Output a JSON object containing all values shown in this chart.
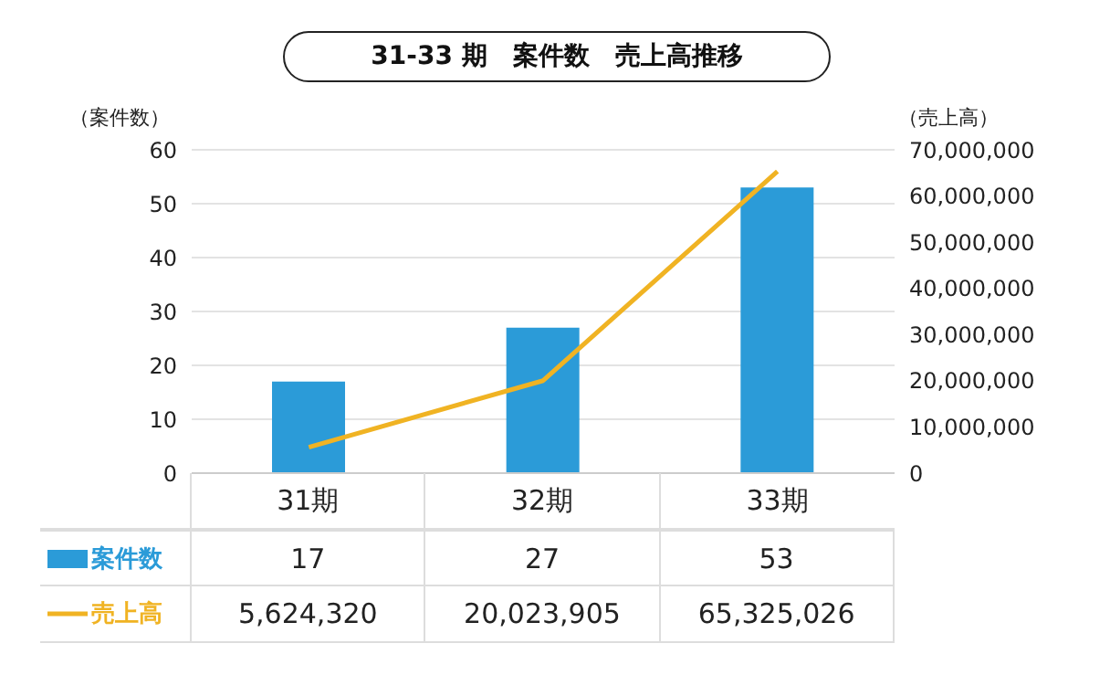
{
  "chart_data": {
    "type": "bar",
    "title": "31-33 期　案件数　売上高推移",
    "ylabel": "（案件数）",
    "y2label": "（売上高）",
    "categories": [
      "31期",
      "32期",
      "33期"
    ],
    "series": [
      {
        "name": "案件数",
        "color": "#2b9bd8",
        "values": [
          17,
          27,
          53
        ],
        "value_labels": [
          "17",
          "27",
          "53"
        ]
      },
      {
        "name": "売上高",
        "type": "line",
        "axis": "y2",
        "color": "#f0b323",
        "values": [
          5624320,
          20023905,
          65325026
        ],
        "value_labels": [
          "5,624,320",
          "20,023,905",
          "65,325,026"
        ]
      }
    ],
    "ylim": [
      0,
      60
    ],
    "yticks": [
      0,
      10,
      20,
      30,
      40,
      50,
      60
    ],
    "y2lim": [
      0,
      70000000
    ],
    "y2ticks": [
      {
        "value": 0,
        "label": "0"
      },
      {
        "value": 10000000,
        "label": "10,000,000"
      },
      {
        "value": 20000000,
        "label": "20,000,000"
      },
      {
        "value": 30000000,
        "label": "30,000,000"
      },
      {
        "value": 40000000,
        "label": "40,000,000"
      },
      {
        "value": 50000000,
        "label": "50,000,000"
      },
      {
        "value": 60000000,
        "label": "60,000,000"
      },
      {
        "value": 70000000,
        "label": "70,000,000"
      }
    ],
    "grid": "y",
    "legend": "bottom left",
    "marker": "none",
    "line_style": "solid"
  }
}
